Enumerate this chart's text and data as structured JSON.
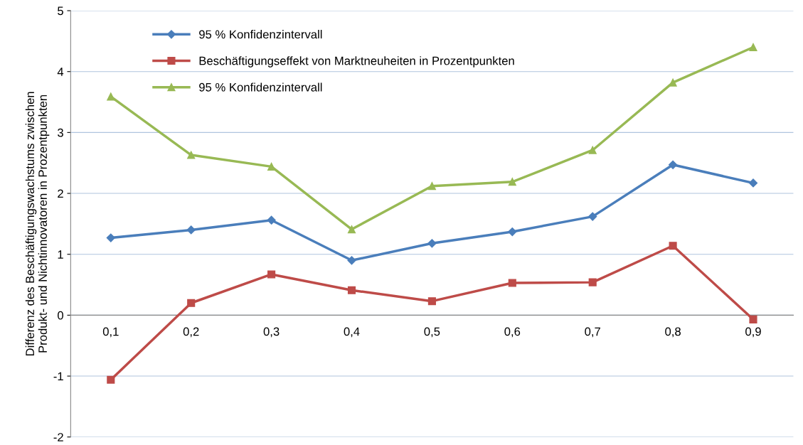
{
  "chart_data": {
    "type": "line",
    "ylabel": "Differenz des Beschäftigungswachstums zwischen\nProdukt- und Nichtinnovatoren in Prozentpunkten",
    "categories": [
      "0,1",
      "0,2",
      "0,3",
      "0,4",
      "0,5",
      "0,6",
      "0,7",
      "0,8",
      "0,9"
    ],
    "series": [
      {
        "name": "95 % Konfidenzintervall",
        "color": "#4a7ebb",
        "marker": "diamond",
        "values": [
          1.27,
          1.4,
          1.56,
          0.9,
          1.18,
          1.37,
          1.62,
          2.47,
          2.17
        ]
      },
      {
        "name": "Beschäftigungseffekt von Marktneuheiten in Prozentpunkten",
        "color": "#be4b48",
        "marker": "square",
        "values": [
          -1.06,
          0.2,
          0.67,
          0.41,
          0.23,
          0.53,
          0.54,
          1.14,
          -0.07
        ]
      },
      {
        "name": "95 % Konfidenzintervall",
        "color": "#98b954",
        "marker": "triangle",
        "values": [
          3.59,
          2.63,
          2.44,
          1.41,
          2.12,
          2.19,
          2.71,
          3.82,
          4.4
        ]
      }
    ],
    "ylim": [
      -2,
      5
    ],
    "yticks": [
      -2,
      -1,
      0,
      1,
      2,
      3,
      4,
      5
    ],
    "grid": "y",
    "legend": "top left",
    "line_style": "solid"
  }
}
